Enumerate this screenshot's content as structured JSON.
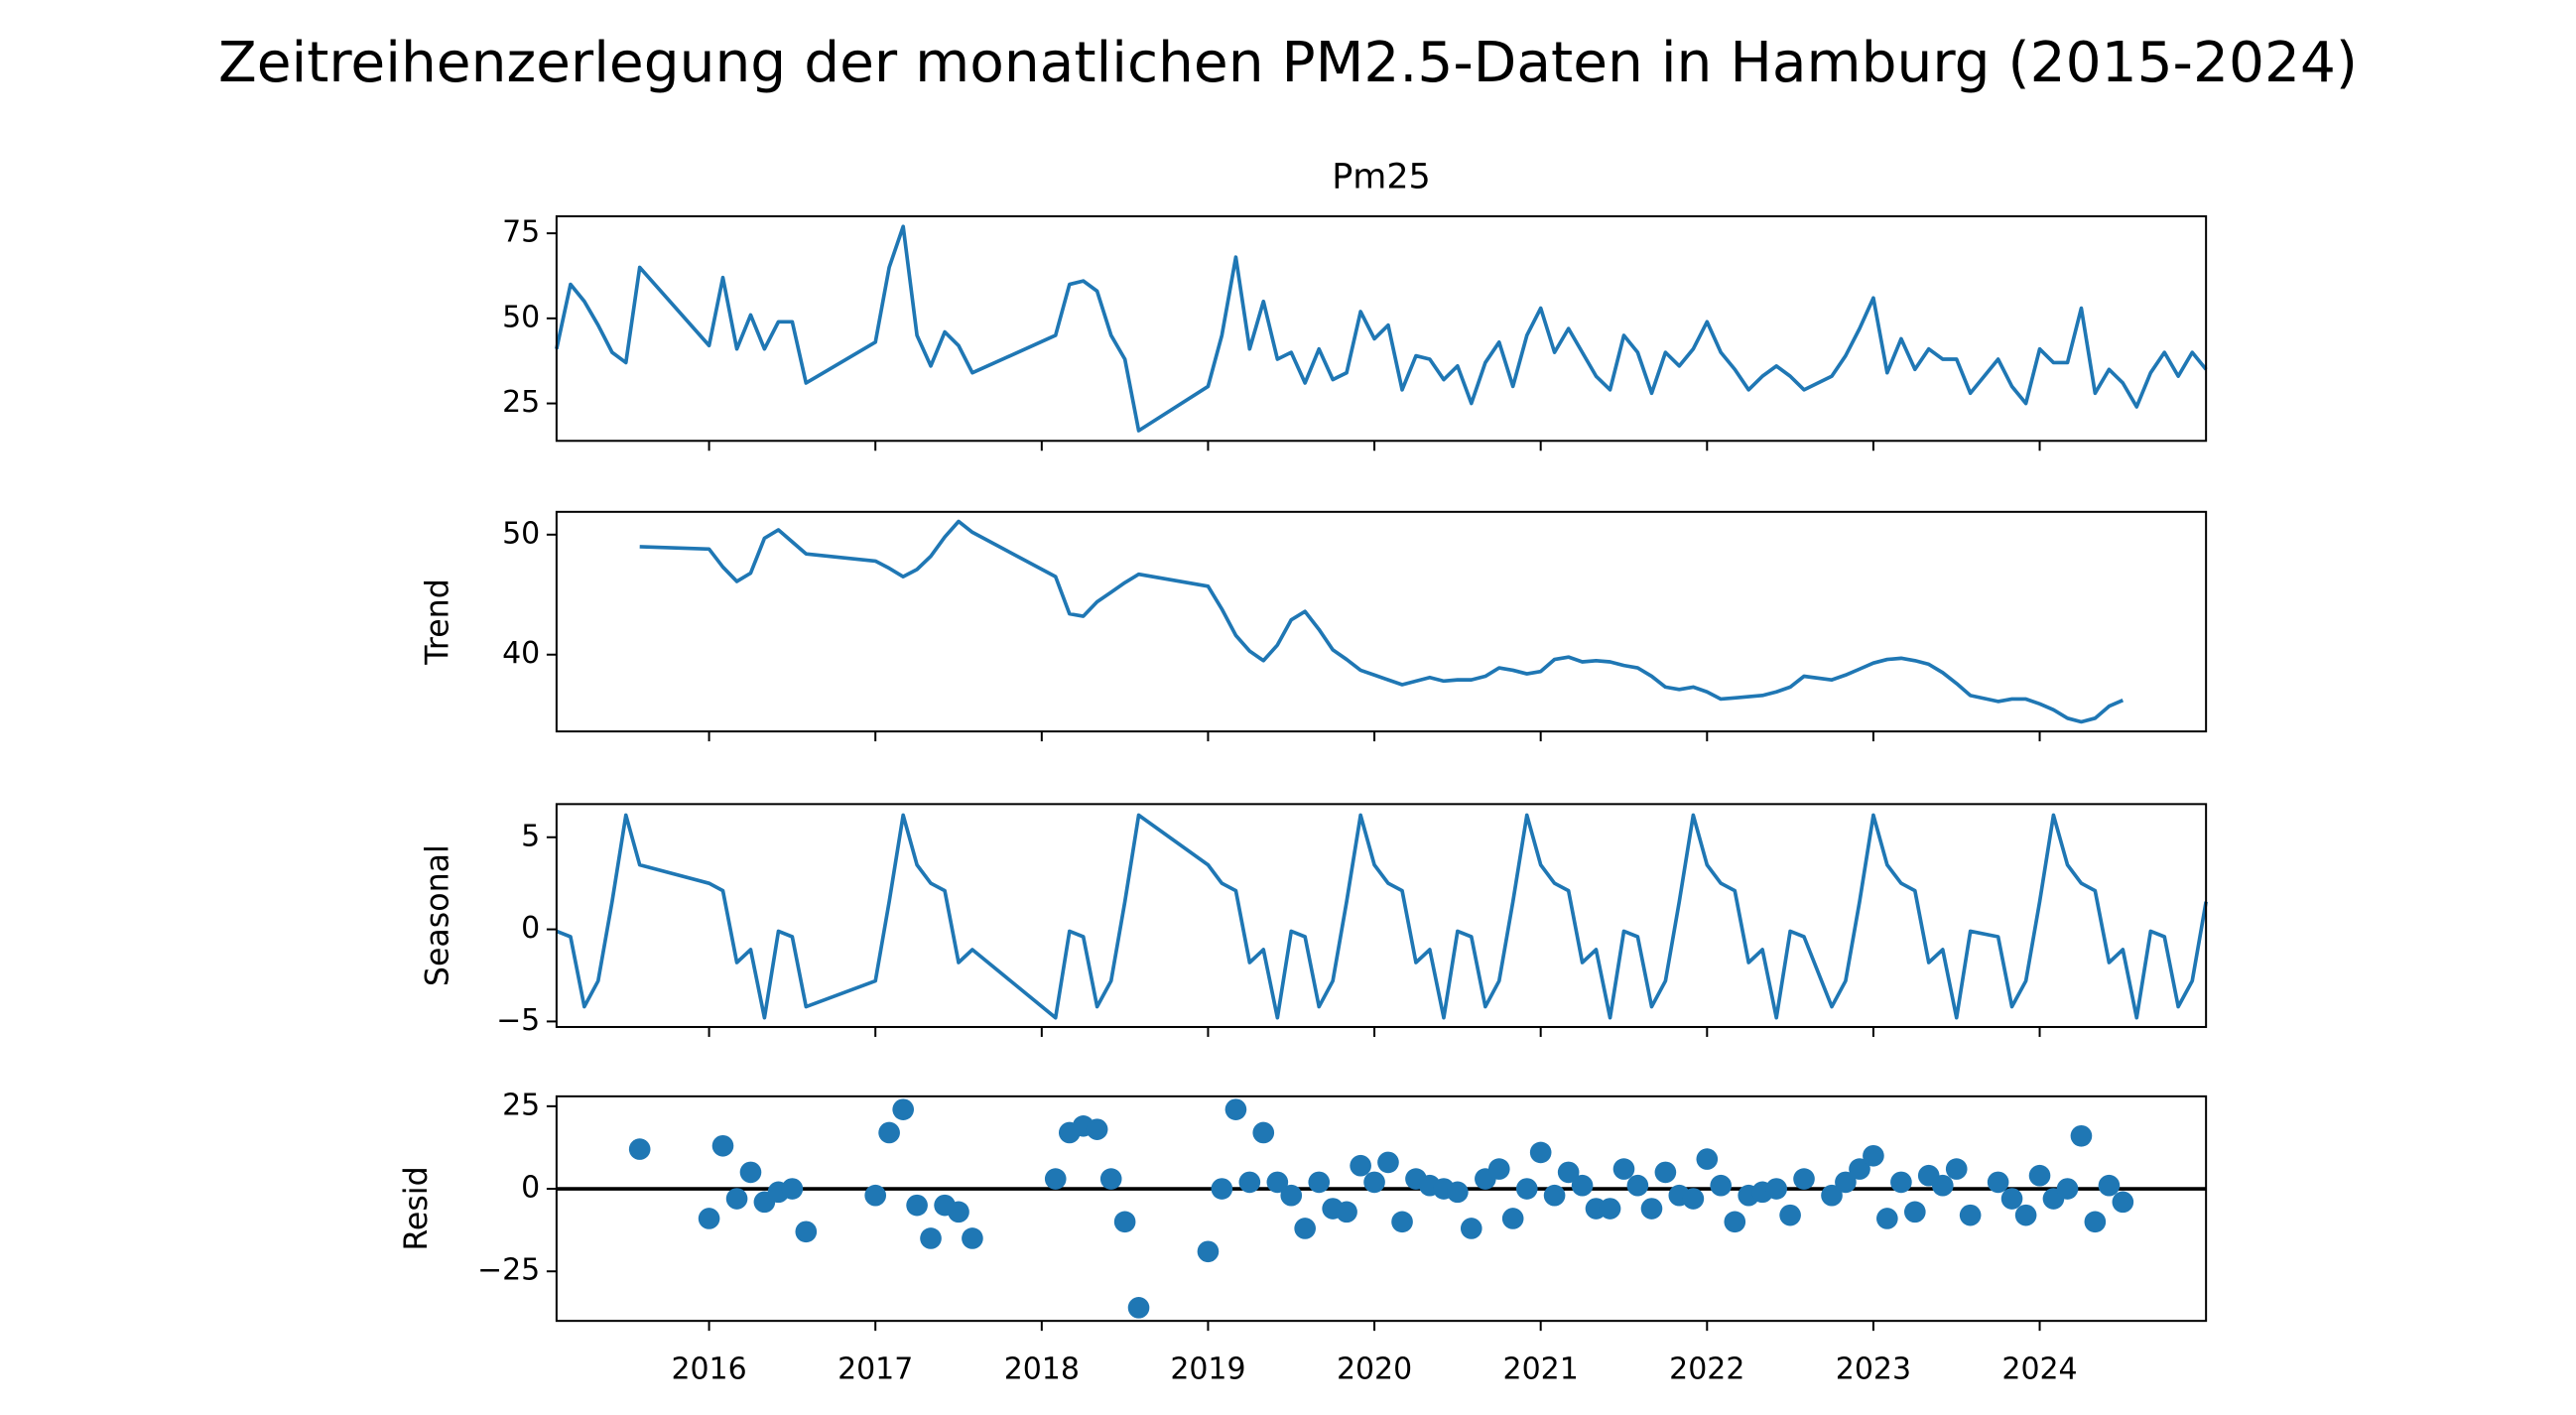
{
  "title": "Zeitreihenzerlegung der monatlichen PM2.5-Daten in Hamburg (2015-2024)",
  "chart_data": [
    {
      "type": "line",
      "title": "Pm25",
      "color": "#1f77b4",
      "x": [
        2015.083,
        2015.167,
        2015.25,
        2015.333,
        2015.417,
        2015.5,
        2015.583,
        2016.0,
        2016.083,
        2016.167,
        2016.25,
        2016.333,
        2016.417,
        2016.5,
        2016.583,
        2017.0,
        2017.083,
        2017.167,
        2017.25,
        2017.333,
        2017.417,
        2017.5,
        2017.583,
        2018.083,
        2018.167,
        2018.25,
        2018.333,
        2018.417,
        2018.5,
        2018.583,
        2019.0,
        2019.083,
        2019.167,
        2019.25,
        2019.333,
        2019.417,
        2019.5,
        2019.583,
        2019.667,
        2019.75,
        2019.833,
        2019.917,
        2020.0,
        2020.083,
        2020.167,
        2020.25,
        2020.333,
        2020.417,
        2020.5,
        2020.583,
        2020.667,
        2020.75,
        2020.833,
        2020.917,
        2021.0,
        2021.083,
        2021.167,
        2021.25,
        2021.333,
        2021.417,
        2021.5,
        2021.583,
        2021.667,
        2021.75,
        2021.833,
        2021.917,
        2022.0,
        2022.083,
        2022.167,
        2022.25,
        2022.333,
        2022.417,
        2022.5,
        2022.583,
        2022.75,
        2022.833,
        2022.917,
        2023.0,
        2023.083,
        2023.167,
        2023.25,
        2023.333,
        2023.417,
        2023.5,
        2023.583,
        2023.75,
        2023.833,
        2023.917,
        2024.0,
        2024.083,
        2024.167,
        2024.25,
        2024.333,
        2024.417,
        2024.5,
        2024.583,
        2024.667,
        2024.75,
        2024.833,
        2024.917,
        2025.0
      ],
      "values": [
        41,
        60,
        55,
        48,
        40,
        37,
        65,
        42,
        62,
        41,
        51,
        41,
        49,
        49,
        31,
        43,
        65,
        77,
        45,
        36,
        46,
        42,
        34,
        45,
        60,
        61,
        58,
        45,
        38,
        17,
        30,
        45,
        68,
        41,
        55,
        38,
        40,
        31,
        41,
        32,
        34,
        52,
        44,
        48,
        29,
        39,
        38,
        32,
        36,
        25,
        37,
        43,
        30,
        45,
        53,
        40,
        47,
        40,
        33,
        29,
        45,
        40,
        28,
        40,
        36,
        41,
        49,
        40,
        35,
        29,
        33,
        36,
        33,
        29,
        33,
        39,
        47,
        56,
        34,
        44,
        35,
        41,
        38,
        38,
        28,
        38,
        30,
        25,
        41,
        37,
        37,
        53,
        28,
        35,
        31,
        24,
        34,
        40,
        33,
        40,
        35
      ],
      "xlim": [
        2015.083,
        2025.0
      ],
      "xticks": [
        2016,
        2017,
        2018,
        2019,
        2020,
        2021,
        2022,
        2023,
        2024
      ],
      "ylim": [
        14,
        80
      ],
      "yticks": [
        25,
        50,
        75
      ]
    },
    {
      "type": "line",
      "y_label": "Trend",
      "color": "#1f77b4",
      "x": [
        2015.083,
        2015.167,
        2015.25,
        2015.333,
        2015.417,
        2015.5,
        2015.583,
        2016.0,
        2016.083,
        2016.167,
        2016.25,
        2016.333,
        2016.417,
        2016.5,
        2016.583,
        2017.0,
        2017.083,
        2017.167,
        2017.25,
        2017.333,
        2017.417,
        2017.5,
        2017.583,
        2018.083,
        2018.167,
        2018.25,
        2018.333,
        2018.417,
        2018.5,
        2018.583,
        2019.0,
        2019.083,
        2019.167,
        2019.25,
        2019.333,
        2019.417,
        2019.5,
        2019.583,
        2019.667,
        2019.75,
        2019.833,
        2019.917,
        2020.0,
        2020.083,
        2020.167,
        2020.25,
        2020.333,
        2020.417,
        2020.5,
        2020.583,
        2020.667,
        2020.75,
        2020.833,
        2020.917,
        2021.0,
        2021.083,
        2021.167,
        2021.25,
        2021.333,
        2021.417,
        2021.5,
        2021.583,
        2021.667,
        2021.75,
        2021.833,
        2021.917,
        2022.0,
        2022.083,
        2022.167,
        2022.25,
        2022.333,
        2022.417,
        2022.5,
        2022.583,
        2022.75,
        2022.833,
        2022.917,
        2023.0,
        2023.083,
        2023.167,
        2023.25,
        2023.333,
        2023.417,
        2023.5,
        2023.583,
        2023.75,
        2023.833,
        2023.917,
        2024.0,
        2024.083,
        2024.167,
        2024.25,
        2024.333,
        2024.417,
        2024.5,
        2024.583,
        2024.667,
        2024.75,
        2024.833,
        2024.917,
        2025.0
      ],
      "values": [
        null,
        null,
        null,
        null,
        null,
        null,
        49.0,
        48.8,
        47.3,
        46.1,
        46.8,
        49.7,
        50.4,
        49.4,
        48.4,
        47.8,
        47.2,
        46.5,
        47.1,
        48.2,
        49.8,
        51.1,
        50.2,
        46.5,
        43.4,
        43.2,
        44.4,
        45.2,
        46.0,
        46.7,
        45.7,
        43.8,
        41.6,
        40.3,
        39.5,
        40.8,
        42.9,
        43.6,
        42.1,
        40.4,
        39.6,
        38.7,
        38.3,
        37.9,
        37.5,
        37.8,
        38.1,
        37.8,
        37.9,
        37.9,
        38.2,
        38.9,
        38.7,
        38.4,
        38.6,
        39.6,
        39.8,
        39.4,
        39.5,
        39.4,
        39.1,
        38.9,
        38.2,
        37.3,
        37.1,
        37.3,
        36.9,
        36.3,
        36.4,
        36.5,
        36.6,
        36.9,
        37.3,
        38.2,
        37.9,
        38.3,
        38.8,
        39.3,
        39.6,
        39.7,
        39.5,
        39.2,
        38.5,
        37.6,
        36.6,
        36.1,
        36.3,
        36.3,
        35.9,
        35.4,
        34.7,
        34.4,
        34.7,
        35.7,
        36.2,
        null,
        null,
        null,
        null,
        null,
        null
      ],
      "xlim": [
        2015.083,
        2025.0
      ],
      "xticks": [
        2016,
        2017,
        2018,
        2019,
        2020,
        2021,
        2022,
        2023,
        2024
      ],
      "ylim": [
        33.6,
        51.9
      ],
      "yticks": [
        40,
        50
      ]
    },
    {
      "type": "line",
      "y_label": "Seasonal",
      "color": "#1f77b4",
      "x": [
        2015.083,
        2015.167,
        2015.25,
        2015.333,
        2015.417,
        2015.5,
        2015.583,
        2016.0,
        2016.083,
        2016.167,
        2016.25,
        2016.333,
        2016.417,
        2016.5,
        2016.583,
        2017.0,
        2017.083,
        2017.167,
        2017.25,
        2017.333,
        2017.417,
        2017.5,
        2017.583,
        2018.083,
        2018.167,
        2018.25,
        2018.333,
        2018.417,
        2018.5,
        2018.583,
        2019.0,
        2019.083,
        2019.167,
        2019.25,
        2019.333,
        2019.417,
        2019.5,
        2019.583,
        2019.667,
        2019.75,
        2019.833,
        2019.917,
        2020.0,
        2020.083,
        2020.167,
        2020.25,
        2020.333,
        2020.417,
        2020.5,
        2020.583,
        2020.667,
        2020.75,
        2020.833,
        2020.917,
        2021.0,
        2021.083,
        2021.167,
        2021.25,
        2021.333,
        2021.417,
        2021.5,
        2021.583,
        2021.667,
        2021.75,
        2021.833,
        2021.917,
        2022.0,
        2022.083,
        2022.167,
        2022.25,
        2022.333,
        2022.417,
        2022.5,
        2022.583,
        2022.75,
        2022.833,
        2022.917,
        2023.0,
        2023.083,
        2023.167,
        2023.25,
        2023.333,
        2023.417,
        2023.5,
        2023.583,
        2023.75,
        2023.833,
        2023.917,
        2024.0,
        2024.083,
        2024.167,
        2024.25,
        2024.333,
        2024.417,
        2024.5,
        2024.583,
        2024.667,
        2024.75,
        2024.833,
        2024.917,
        2025.0
      ],
      "values": [
        -0.1,
        -0.4,
        -4.2,
        -2.8,
        1.5,
        6.2,
        3.5,
        2.5,
        2.1,
        -1.8,
        -1.1,
        -4.8,
        -0.1,
        -0.4,
        -4.2,
        -2.8,
        1.5,
        6.2,
        3.5,
        2.5,
        2.1,
        -1.8,
        -1.1,
        -4.8,
        -0.1,
        -0.4,
        -4.2,
        -2.8,
        1.5,
        6.2,
        3.5,
        2.5,
        2.1,
        -1.8,
        -1.1,
        -4.8,
        -0.1,
        -0.4,
        -4.2,
        -2.8,
        1.5,
        6.2,
        3.5,
        2.5,
        2.1,
        -1.8,
        -1.1,
        -4.8,
        -0.1,
        -0.4,
        -4.2,
        -2.8,
        1.5,
        6.2,
        3.5,
        2.5,
        2.1,
        -1.8,
        -1.1,
        -4.8,
        -0.1,
        -0.4,
        -4.2,
        -2.8,
        1.5,
        6.2,
        3.5,
        2.5,
        2.1,
        -1.8,
        -1.1,
        -4.8,
        -0.1,
        -0.4,
        -4.2,
        -2.8,
        1.5,
        6.2,
        3.5,
        2.5,
        2.1,
        -1.8,
        -1.1,
        -4.8,
        -0.1,
        -0.4,
        -4.2,
        -2.8,
        1.5,
        6.2,
        3.5,
        2.5,
        2.1,
        -1.8,
        -1.1,
        -4.8,
        -0.1,
        -0.4,
        -4.2,
        -2.8,
        1.5
      ],
      "xlim": [
        2015.083,
        2025.0
      ],
      "xticks": [
        2016,
        2017,
        2018,
        2019,
        2020,
        2021,
        2022,
        2023,
        2024
      ],
      "ylim": [
        -5.3,
        6.8
      ],
      "yticks": [
        {
          "value": -5,
          "label": "−5"
        },
        0,
        5
      ]
    },
    {
      "type": "scatter",
      "y_label": "Resid",
      "color": "#1f77b4",
      "baseline": 0,
      "x": [
        2015.083,
        2015.167,
        2015.25,
        2015.333,
        2015.417,
        2015.5,
        2015.583,
        2016.0,
        2016.083,
        2016.167,
        2016.25,
        2016.333,
        2016.417,
        2016.5,
        2016.583,
        2017.0,
        2017.083,
        2017.167,
        2017.25,
        2017.333,
        2017.417,
        2017.5,
        2017.583,
        2018.083,
        2018.167,
        2018.25,
        2018.333,
        2018.417,
        2018.5,
        2018.583,
        2019.0,
        2019.083,
        2019.167,
        2019.25,
        2019.333,
        2019.417,
        2019.5,
        2019.583,
        2019.667,
        2019.75,
        2019.833,
        2019.917,
        2020.0,
        2020.083,
        2020.167,
        2020.25,
        2020.333,
        2020.417,
        2020.5,
        2020.583,
        2020.667,
        2020.75,
        2020.833,
        2020.917,
        2021.0,
        2021.083,
        2021.167,
        2021.25,
        2021.333,
        2021.417,
        2021.5,
        2021.583,
        2021.667,
        2021.75,
        2021.833,
        2021.917,
        2022.0,
        2022.083,
        2022.167,
        2022.25,
        2022.333,
        2022.417,
        2022.5,
        2022.583,
        2022.75,
        2022.833,
        2022.917,
        2023.0,
        2023.083,
        2023.167,
        2023.25,
        2023.333,
        2023.417,
        2023.5,
        2023.583,
        2023.75,
        2023.833,
        2023.917,
        2024.0,
        2024.083,
        2024.167,
        2024.25,
        2024.333,
        2024.417,
        2024.5,
        2024.583,
        2024.667,
        2024.75,
        2024.833,
        2024.917,
        2025.0
      ],
      "values": [
        null,
        null,
        null,
        null,
        null,
        null,
        12,
        -9,
        13,
        -3,
        5,
        -4,
        -1,
        0,
        -13,
        -2,
        17,
        24,
        -5,
        -15,
        -5,
        -7,
        -15,
        3,
        17,
        19,
        18,
        3,
        -10,
        -36,
        -19,
        0,
        24,
        2,
        17,
        2,
        -2,
        -12,
        2,
        -6,
        -7,
        7,
        2,
        8,
        -10,
        3,
        1,
        0,
        -1,
        -12,
        3,
        6,
        -9,
        0,
        11,
        -2,
        5,
        1,
        -6,
        -6,
        6,
        1,
        -6,
        5,
        -2,
        -3,
        9,
        1,
        -10,
        -2,
        -1,
        0,
        -8,
        3,
        -2,
        2,
        6,
        10,
        -9,
        2,
        -7,
        4,
        1,
        6,
        -8,
        2,
        -3,
        -8,
        4,
        -3,
        0,
        16,
        -10,
        1,
        -4,
        null,
        null,
        null,
        null,
        null,
        null
      ],
      "xlim": [
        2015.083,
        2025.0
      ],
      "xticks": [
        2016,
        2017,
        2018,
        2019,
        2020,
        2021,
        2022,
        2023,
        2024
      ],
      "ylim": [
        -40,
        28
      ],
      "yticks": [
        {
          "value": -25,
          "label": "−25"
        },
        0,
        25
      ]
    }
  ]
}
